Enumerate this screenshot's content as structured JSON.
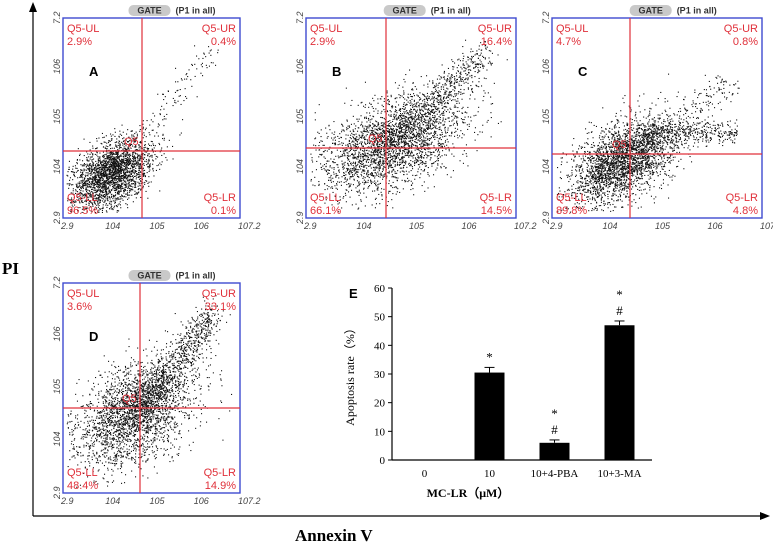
{
  "figure": {
    "y_axis_label": "PI",
    "x_axis_label": "Annexin V"
  },
  "flow_panels": [
    {
      "letter": "A",
      "gate_label": "GATE",
      "gate_sub": "(P1 in all)",
      "center_label": "Q5",
      "quadrants": {
        "ul": {
          "name": "Q5-UL",
          "value": "2.9%"
        },
        "ur": {
          "name": "Q5-UR",
          "value": "0.4%"
        },
        "ll": {
          "name": "Q5-LL",
          "value": "96.5%"
        },
        "lr": {
          "name": "Q5-LR",
          "value": "0.1%"
        }
      },
      "x_ticks": [
        "2.9",
        "10^4",
        "10^5",
        "10^6",
        "10^7.2"
      ],
      "y_ticks": [
        "7.2",
        "10^6",
        "10^5",
        "10^4",
        "2.9"
      ]
    },
    {
      "letter": "B",
      "gate_label": "GATE",
      "gate_sub": "(P1 in all)",
      "center_label": "Q5",
      "quadrants": {
        "ul": {
          "name": "Q5-UL",
          "value": "2.9%"
        },
        "ur": {
          "name": "Q5-UR",
          "value": "16.4%"
        },
        "ll": {
          "name": "Q5-LL",
          "value": "66.1%"
        },
        "lr": {
          "name": "Q5-LR",
          "value": "14.5%"
        }
      },
      "x_ticks": [
        "2.9",
        "10^4",
        "10^5",
        "10^6",
        "10^7.2"
      ],
      "y_ticks": [
        "7.2",
        "10^6",
        "10^5",
        "10^4",
        "2.9"
      ]
    },
    {
      "letter": "C",
      "gate_label": "GATE",
      "gate_sub": "(P1 in all)",
      "center_label": "Q5",
      "quadrants": {
        "ul": {
          "name": "Q5-UL",
          "value": "4.7%"
        },
        "ur": {
          "name": "Q5-UR",
          "value": "0.8%"
        },
        "ll": {
          "name": "Q5-LL",
          "value": "89.8%"
        },
        "lr": {
          "name": "Q5-LR",
          "value": "4.8%"
        }
      },
      "x_ticks": [
        "2.9",
        "10^4",
        "10^5",
        "10^6",
        "10^7.2"
      ],
      "y_ticks": [
        "7.2",
        "10^6",
        "10^5",
        "10^4",
        "2.9"
      ]
    },
    {
      "letter": "D",
      "gate_label": "GATE",
      "gate_sub": "(P1 in all)",
      "center_label": "Q5",
      "quadrants": {
        "ul": {
          "name": "Q5-UL",
          "value": "3.6%"
        },
        "ur": {
          "name": "Q5-UR",
          "value": "33.1%"
        },
        "ll": {
          "name": "Q5-LL",
          "value": "48.4%"
        },
        "lr": {
          "name": "Q5-LR",
          "value": "14.9%"
        }
      },
      "x_ticks": [
        "2.9",
        "10^4",
        "10^5",
        "10^6",
        "10^7.2"
      ],
      "y_ticks": [
        "7.2",
        "10^6",
        "10^5",
        "10^4",
        "2.9"
      ]
    }
  ],
  "chart_data": {
    "letter": "E",
    "type": "bar",
    "categories": [
      "0",
      "10",
      "10+4-PBA",
      "10+3-MA"
    ],
    "values": [
      0,
      30.5,
      6,
      47
    ],
    "errors": [
      0,
      1.8,
      1.0,
      1.5
    ],
    "annotations": [
      "",
      "*",
      "*\n#",
      "*\n#"
    ],
    "xlabel": "MC-LR（μM）",
    "ylabel": "Apoptosis rate（%）",
    "ylim": [
      0,
      60
    ],
    "yticks": [
      0,
      10,
      20,
      30,
      40,
      50,
      60
    ],
    "bar_color": "#000000"
  },
  "colors": {
    "quadrant_line": "#e0303a",
    "frame": "#3f4bd0",
    "dots": "#111111"
  }
}
